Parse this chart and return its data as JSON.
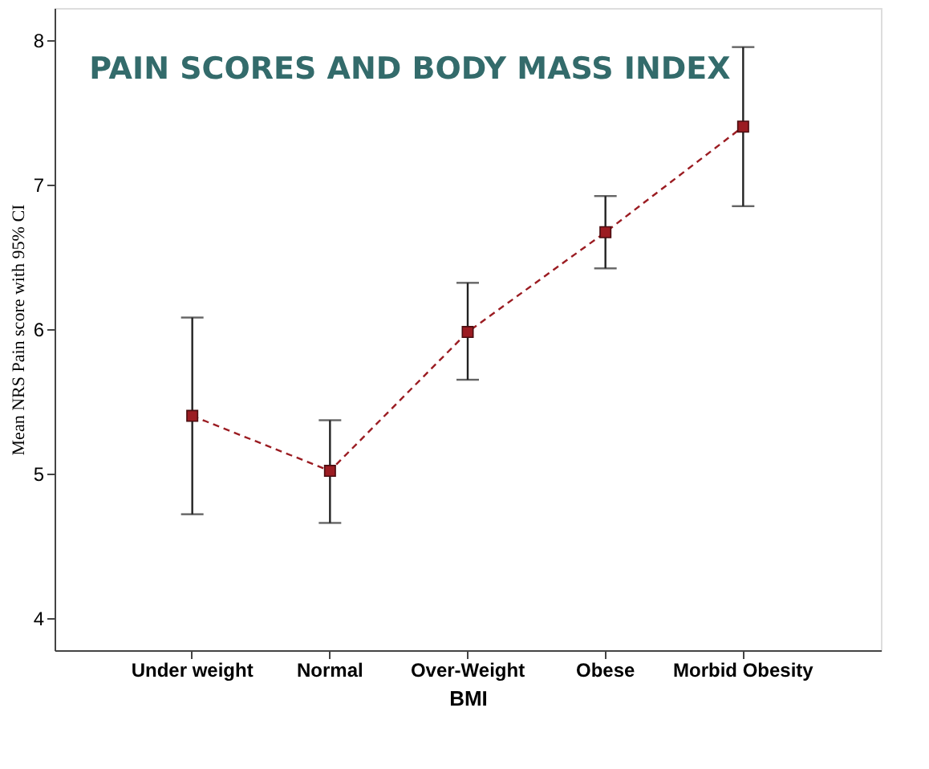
{
  "chart_data": {
    "type": "line",
    "title": "PAIN SCORES AND BODY MASS INDEX",
    "xlabel": "BMI",
    "ylabel": "Mean NRS Pain score with 95% CI",
    "categories": [
      "Under weight",
      "Normal",
      "Over-Weight",
      "Obese",
      "Morbid Obesity"
    ],
    "series": [
      {
        "color": "#9b1c22",
        "values": [
          5.4,
          5.02,
          5.98,
          6.67,
          7.4
        ],
        "errors": [
          [
            4.72,
            6.08
          ],
          [
            4.66,
            5.37
          ],
          [
            5.65,
            6.32
          ],
          [
            6.42,
            6.92
          ],
          [
            6.85,
            7.95
          ]
        ]
      }
    ],
    "ylim": [
      3.78,
      8.22
    ],
    "yticks": [
      4,
      5,
      6,
      7,
      8
    ],
    "grid": false,
    "marker": "square",
    "line_style": "dashed"
  }
}
